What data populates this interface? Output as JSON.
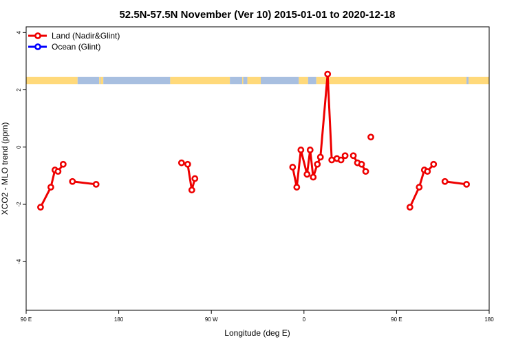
{
  "chart_data": {
    "type": "line",
    "title": "52.5N-57.5N November (Ver 10)   2015-01-01 to 2020-12-18",
    "xlabel": "Longitude (deg E)",
    "ylabel": "XCO2 - MLO trend (ppm)",
    "xlim": [
      90,
      540
    ],
    "ylim": [
      -5.7,
      4.2
    ],
    "x_ticks": [
      {
        "value": 90,
        "label": "90 E"
      },
      {
        "value": 180,
        "label": "180"
      },
      {
        "value": 270,
        "label": "90 W"
      },
      {
        "value": 360,
        "label": "0"
      },
      {
        "value": 450,
        "label": "90 E"
      },
      {
        "value": 540,
        "label": "180"
      }
    ],
    "y_ticks": [
      {
        "value": 4,
        "label": "4"
      },
      {
        "value": 2,
        "label": "2"
      },
      {
        "value": 0,
        "label": "0"
      },
      {
        "value": -2,
        "label": "-2"
      },
      {
        "value": -4,
        "label": "-4"
      }
    ],
    "land_ocean_strip": {
      "y_range": [
        2.2,
        2.45
      ],
      "land_color": "#ffd97a",
      "ocean_color": "#a8bfe0",
      "segments": [
        {
          "type": "land",
          "from": 90,
          "to": 140
        },
        {
          "type": "ocean",
          "from": 140,
          "to": 161
        },
        {
          "type": "land",
          "from": 161,
          "to": 162
        },
        {
          "type": "ocean",
          "from": 162,
          "to": 162.5
        },
        {
          "type": "land",
          "from": 162.5,
          "to": 165
        },
        {
          "type": "ocean",
          "from": 165,
          "to": 230
        },
        {
          "type": "land",
          "from": 230,
          "to": 288
        },
        {
          "type": "ocean",
          "from": 288,
          "to": 300
        },
        {
          "type": "land",
          "from": 300,
          "to": 301
        },
        {
          "type": "ocean",
          "from": 301,
          "to": 305
        },
        {
          "type": "land",
          "from": 305,
          "to": 318
        },
        {
          "type": "ocean",
          "from": 318,
          "to": 355
        },
        {
          "type": "land",
          "from": 355,
          "to": 364
        },
        {
          "type": "ocean",
          "from": 364,
          "to": 372
        },
        {
          "type": "land",
          "from": 372,
          "to": 518
        },
        {
          "type": "ocean",
          "from": 518,
          "to": 520
        },
        {
          "type": "land",
          "from": 520,
          "to": 540
        }
      ]
    },
    "series": [
      {
        "name": "Land (Nadir&Glint)",
        "color": "#ee0000",
        "segments": [
          [
            [
              104,
              -2.1
            ],
            [
              114,
              -1.4
            ],
            [
              118,
              -0.8
            ],
            [
              121,
              -0.85
            ],
            [
              126,
              -0.6
            ]
          ],
          [
            [
              135,
              -1.2
            ],
            [
              158,
              -1.3
            ]
          ],
          [
            [
              241,
              -0.55
            ],
            [
              247,
              -0.6
            ],
            [
              251,
              -1.5
            ],
            [
              254,
              -1.1
            ]
          ],
          [
            [
              349,
              -0.7
            ],
            [
              353,
              -1.4
            ],
            [
              357,
              -0.1
            ],
            [
              363,
              -0.95
            ],
            [
              366,
              -0.1
            ],
            [
              369,
              -1.05
            ],
            [
              373,
              -0.6
            ],
            [
              376,
              -0.35
            ],
            [
              383,
              2.55
            ],
            [
              387,
              -0.45
            ],
            [
              392,
              -0.4
            ],
            [
              396,
              -0.45
            ],
            [
              400,
              -0.3
            ]
          ],
          [
            [
              408,
              -0.3
            ],
            [
              412,
              -0.55
            ],
            [
              416,
              -0.6
            ],
            [
              420,
              -0.85
            ]
          ],
          [
            [
              425,
              0.35
            ]
          ],
          [
            [
              463,
              -2.1
            ],
            [
              472,
              -1.4
            ],
            [
              477,
              -0.8
            ],
            [
              480,
              -0.85
            ],
            [
              486,
              -0.6
            ]
          ],
          [
            [
              497,
              -1.2
            ],
            [
              518,
              -1.3
            ]
          ]
        ]
      },
      {
        "name": "Ocean (Glint)",
        "color": "#0000ff",
        "segments": []
      }
    ],
    "legend_position": "top-left",
    "grid": false
  }
}
